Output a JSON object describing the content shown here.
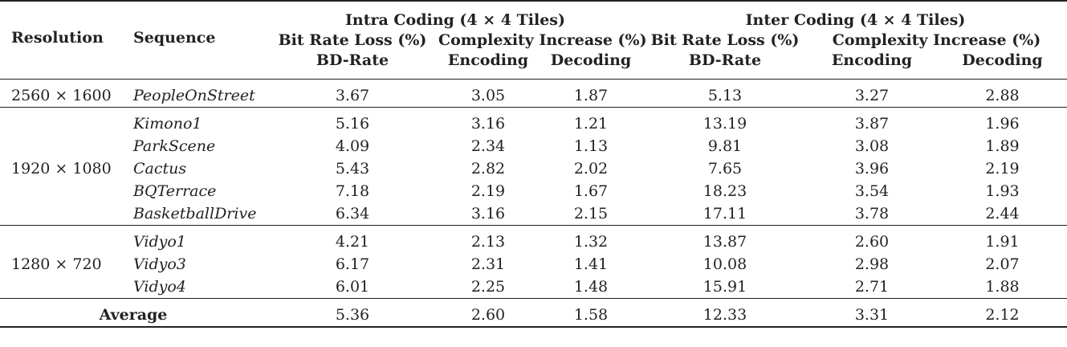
{
  "header": {
    "intra_group": "Intra Coding (4 × 4 Tiles)",
    "inter_group": "Inter Coding (4 × 4 Tiles)",
    "resolution": "Resolution",
    "sequence": "Sequence",
    "bitrate_loss": "Bit Rate Loss (%)",
    "complexity_increase": "Complexity Increase (%)",
    "bd_rate": "BD-Rate",
    "encoding": "Encoding",
    "decoding": "Decoding"
  },
  "groups": [
    {
      "resolution": "2560 × 1600",
      "rows": [
        {
          "sequence": "PeopleOnStreet",
          "values": [
            "3.67",
            "3.05",
            "1.87",
            "5.13",
            "3.27",
            "2.88"
          ]
        }
      ]
    },
    {
      "resolution": "1920 × 1080",
      "rows": [
        {
          "sequence": "Kimono1",
          "values": [
            "5.16",
            "3.16",
            "1.21",
            "13.19",
            "3.87",
            "1.96"
          ]
        },
        {
          "sequence": "ParkScene",
          "values": [
            "4.09",
            "2.34",
            "1.13",
            "9.81",
            "3.08",
            "1.89"
          ]
        },
        {
          "sequence": "Cactus",
          "values": [
            "5.43",
            "2.82",
            "2.02",
            "7.65",
            "3.96",
            "2.19"
          ]
        },
        {
          "sequence": "BQTerrace",
          "values": [
            "7.18",
            "2.19",
            "1.67",
            "18.23",
            "3.54",
            "1.93"
          ]
        },
        {
          "sequence": "BasketballDrive",
          "values": [
            "6.34",
            "3.16",
            "2.15",
            "17.11",
            "3.78",
            "2.44"
          ]
        }
      ]
    },
    {
      "resolution": "1280 × 720",
      "rows": [
        {
          "sequence": "Vidyo1",
          "values": [
            "4.21",
            "2.13",
            "1.32",
            "13.87",
            "2.60",
            "1.91"
          ]
        },
        {
          "sequence": "Vidyo3",
          "values": [
            "6.17",
            "2.31",
            "1.41",
            "10.08",
            "2.98",
            "2.07"
          ]
        },
        {
          "sequence": "Vidyo4",
          "values": [
            "6.01",
            "2.25",
            "1.48",
            "15.91",
            "2.71",
            "1.88"
          ]
        }
      ]
    }
  ],
  "average": {
    "label": "Average",
    "values": [
      "5.36",
      "2.60",
      "1.58",
      "12.33",
      "3.31",
      "2.12"
    ]
  }
}
